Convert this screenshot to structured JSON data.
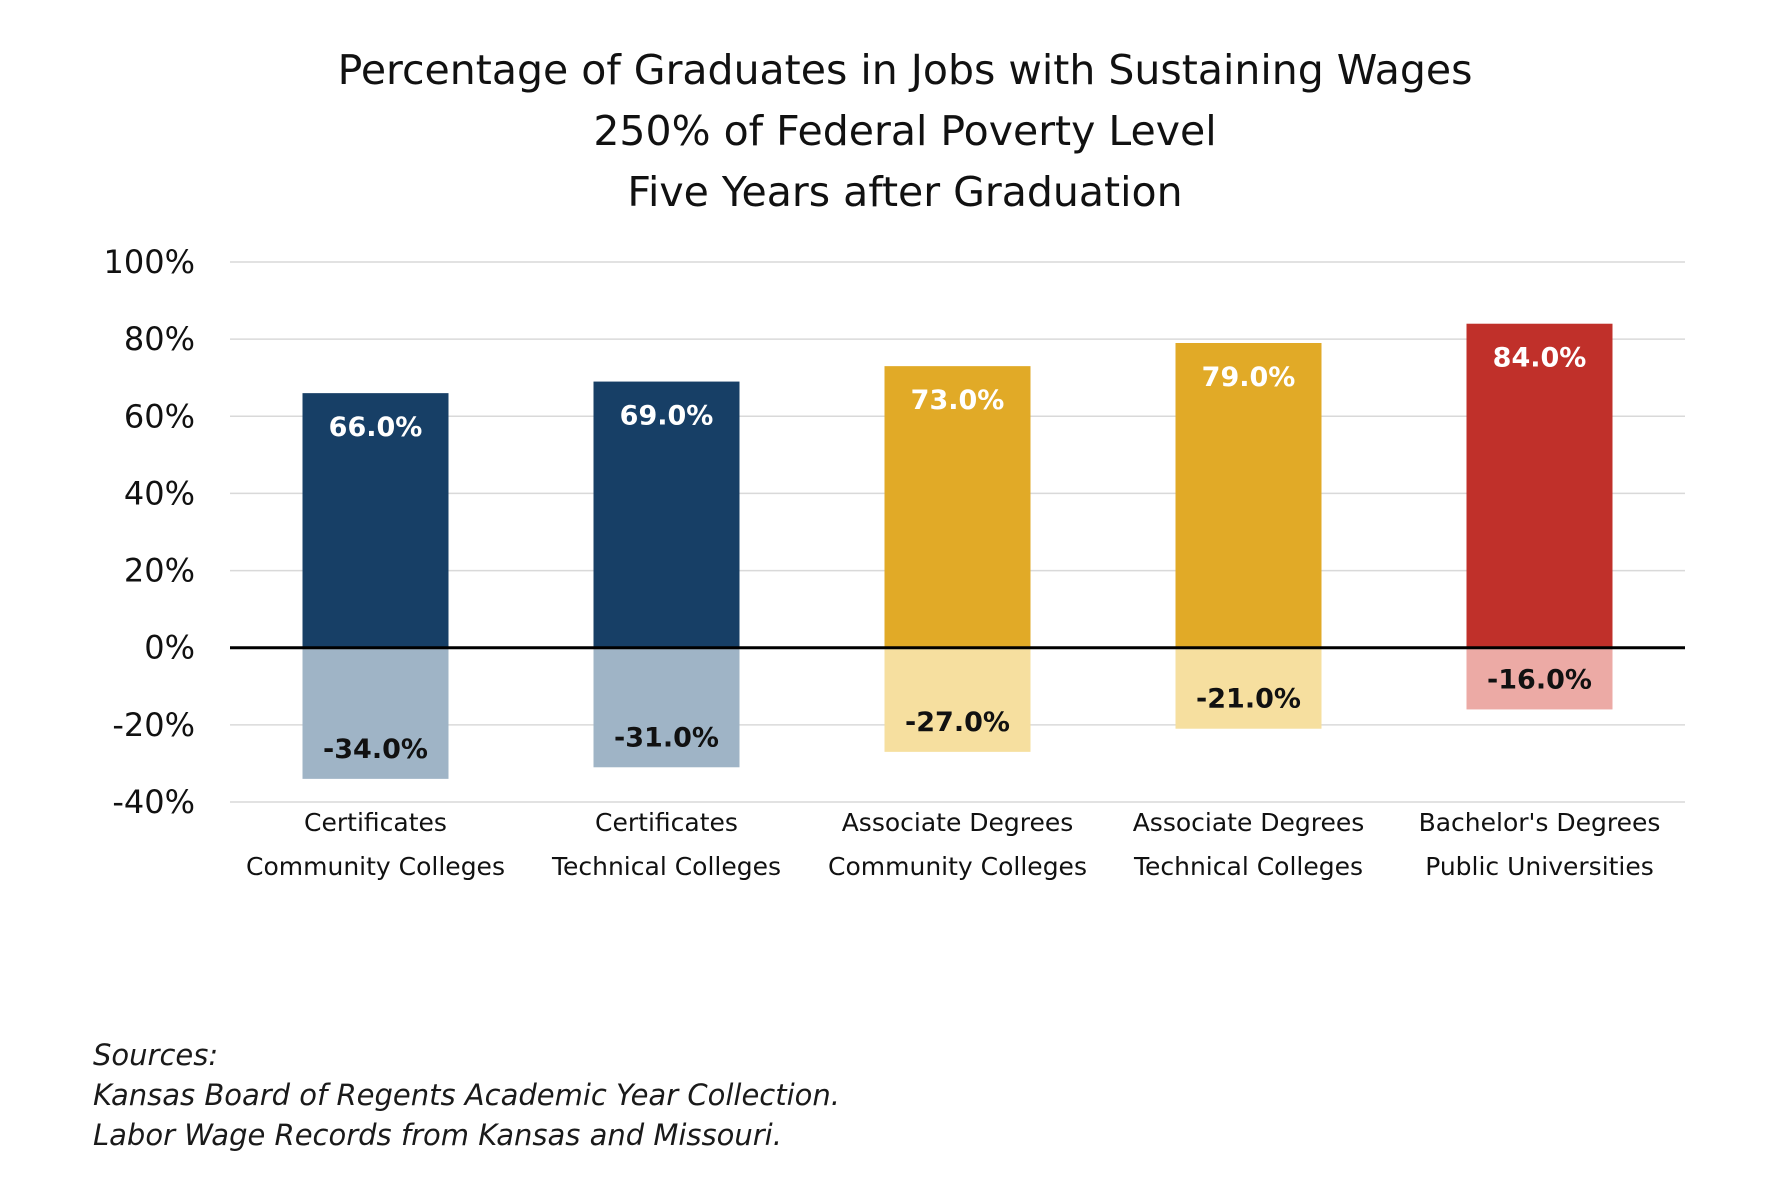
{
  "chart_data": {
    "type": "bar",
    "title_lines": [
      "Percentage of Graduates in Jobs with Sustaining Wages",
      "250% of Federal Poverty Level",
      "Five Years after Graduation"
    ],
    "categories": [
      [
        "Certificates",
        "Community Colleges"
      ],
      [
        "Certificates",
        "Technical Colleges"
      ],
      [
        "Associate Degrees",
        "Community Colleges"
      ],
      [
        "Associate Degrees",
        "Technical Colleges"
      ],
      [
        "Bachelor's Degrees",
        "Public Universities"
      ]
    ],
    "series": [
      {
        "values": [
          66.0,
          69.0,
          73.0,
          79.0,
          84.0
        ],
        "labels": [
          "66.0%",
          "69.0%",
          "73.0%",
          "79.0%",
          "84.0%"
        ]
      },
      {
        "values": [
          -34.0,
          -31.0,
          -27.0,
          -21.0,
          -16.0
        ],
        "labels": [
          "-34.0%",
          "-31.0%",
          "-27.0%",
          "-21.0%",
          "-16.0%"
        ]
      }
    ],
    "colors": {
      "positive": [
        "#173f66",
        "#173f66",
        "#e1aa27",
        "#e1aa27",
        "#c0302a"
      ],
      "negative": [
        "#9fb4c6",
        "#9fb4c6",
        "#f6df9f",
        "#f6df9f",
        "#ecaaa5"
      ],
      "positive_label": [
        "#ffffff",
        "#ffffff",
        "#ffffff",
        "#ffffff",
        "#ffffff"
      ],
      "negative_label": "#111111",
      "gridline": "#d9d9d9",
      "zero_line": "#000000"
    },
    "ylim": [
      -40,
      100
    ],
    "yticks": [
      100,
      80,
      60,
      40,
      20,
      0,
      -20,
      -40
    ],
    "ytick_labels": [
      "100%",
      "80%",
      "60%",
      "40%",
      "20%",
      "0%",
      "-20%",
      "-40%"
    ],
    "xlabel": "",
    "ylabel": "",
    "grid": true,
    "legend": "none"
  },
  "sources": {
    "heading": "Sources:",
    "lines": [
      "Kansas Board of Regents Academic Year Collection.",
      "Labor Wage Records from Kansas and Missouri."
    ]
  }
}
